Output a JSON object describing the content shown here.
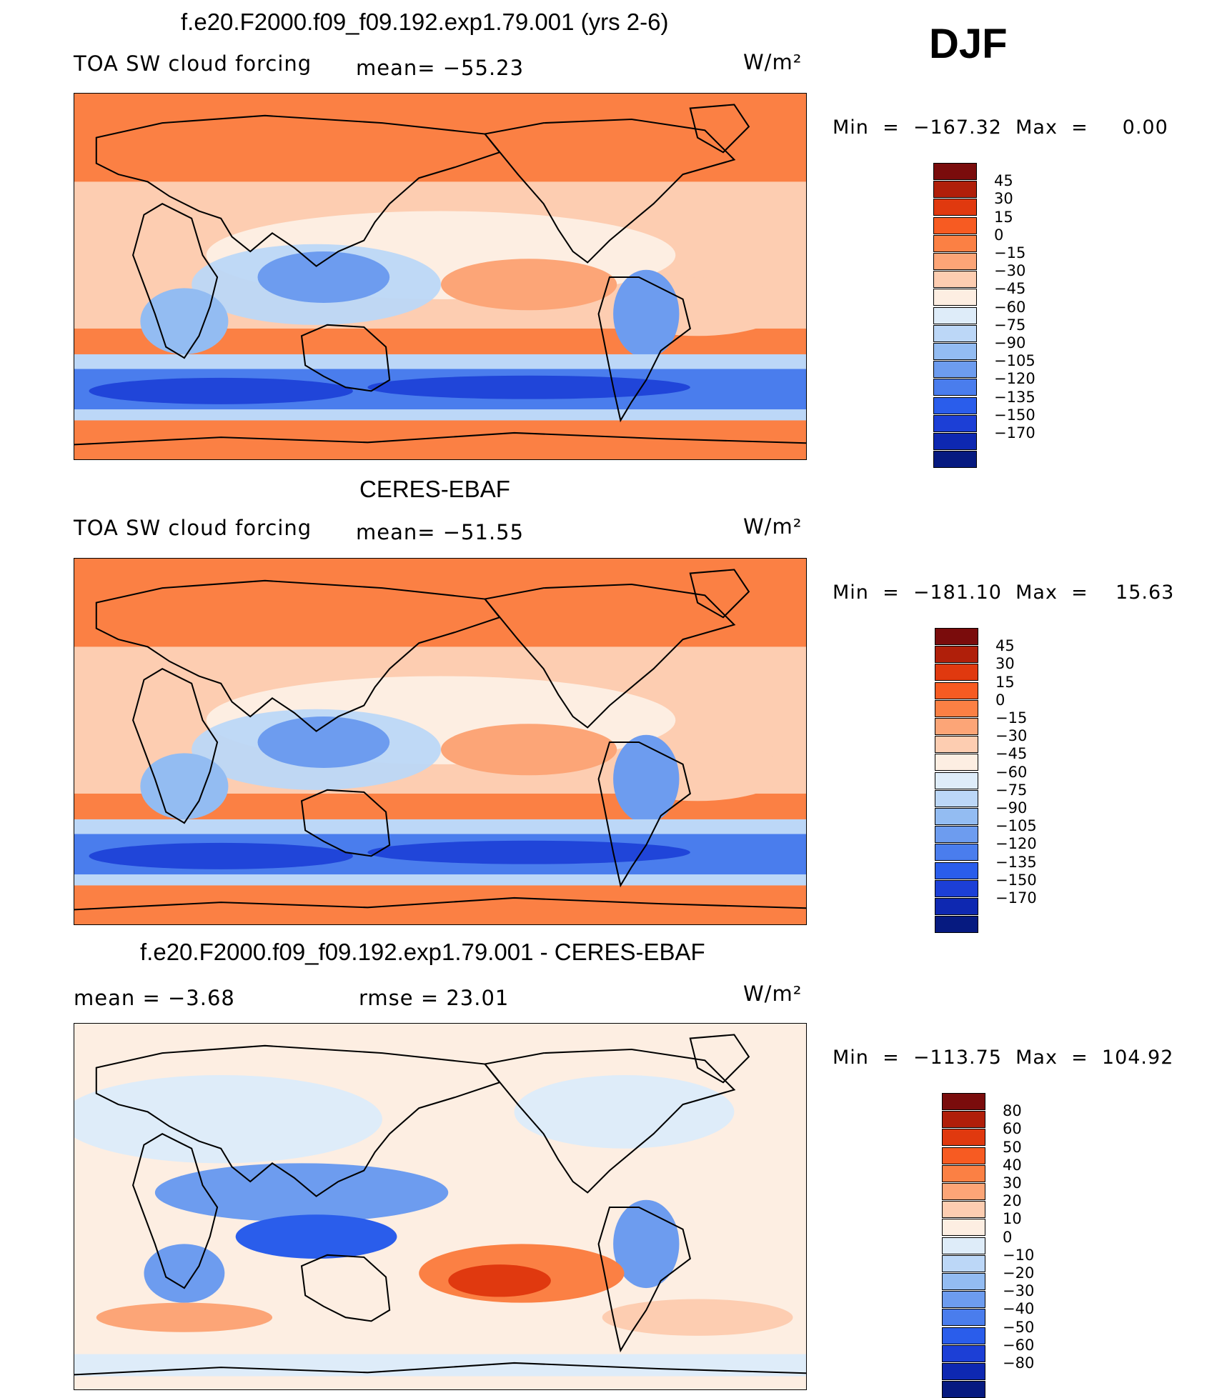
{
  "season": "DJF",
  "panels": [
    {
      "title": "f.e20.F2000.f09_f09.192.exp1.79.001 (yrs 2-6)",
      "left_label": "TOA SW cloud forcing",
      "mid_label": "mean= −55.23",
      "units": "W/m²",
      "minmax": "Min  =  −167.32  Max  =     0.00",
      "style": "field",
      "colorbar": {
        "colors": [
          "#7a0c0c",
          "#b01f0a",
          "#e0390f",
          "#f75b22",
          "#fb8044",
          "#fca577",
          "#fdcdb1",
          "#fdeee2",
          "#deecf9",
          "#bcd7f7",
          "#93bcf2",
          "#6d9cef",
          "#4a7ded",
          "#2a5deb",
          "#1c3fd6",
          "#0e28b1",
          "#061a80"
        ],
        "labels": [
          "45",
          "30",
          "15",
          "0",
          "−15",
          "−30",
          "−45",
          "−60",
          "−75",
          "−90",
          "−105",
          "−120",
          "−135",
          "−150",
          "−170"
        ]
      }
    },
    {
      "title": "CERES-EBAF",
      "left_label": "TOA SW cloud forcing",
      "mid_label": "mean= −51.55",
      "units": "W/m²",
      "minmax": "Min  =  −181.10  Max  =    15.63",
      "style": "field",
      "colorbar": {
        "colors": [
          "#7a0c0c",
          "#b01f0a",
          "#e0390f",
          "#f75b22",
          "#fb8044",
          "#fca577",
          "#fdcdb1",
          "#fdeee2",
          "#deecf9",
          "#bcd7f7",
          "#93bcf2",
          "#6d9cef",
          "#4a7ded",
          "#2a5deb",
          "#1c3fd6",
          "#0e28b1",
          "#061a80"
        ],
        "labels": [
          "45",
          "30",
          "15",
          "0",
          "−15",
          "−30",
          "−45",
          "−60",
          "−75",
          "−90",
          "−105",
          "−120",
          "−135",
          "−150",
          "−170"
        ]
      }
    },
    {
      "title": "f.e20.F2000.f09_f09.192.exp1.79.001 - CERES-EBAF",
      "left_label": "mean  =    −3.68",
      "mid_label": "rmse  =    23.01",
      "units": "W/m²",
      "minmax": "Min  =  −113.75  Max  =  104.92",
      "style": "diff",
      "colorbar": {
        "colors": [
          "#7a0c0c",
          "#b01f0a",
          "#e0390f",
          "#f75b22",
          "#fb8044",
          "#fca577",
          "#fdcdb1",
          "#fdeee2",
          "#deecf9",
          "#bcd7f7",
          "#93bcf2",
          "#6d9cef",
          "#4a7ded",
          "#2a5deb",
          "#1c3fd6",
          "#0e28b1",
          "#061a80"
        ],
        "labels": [
          "80",
          "60",
          "50",
          "40",
          "30",
          "20",
          "10",
          "0",
          "−10",
          "−20",
          "−30",
          "−40",
          "−50",
          "−60",
          "−80"
        ]
      }
    }
  ]
}
